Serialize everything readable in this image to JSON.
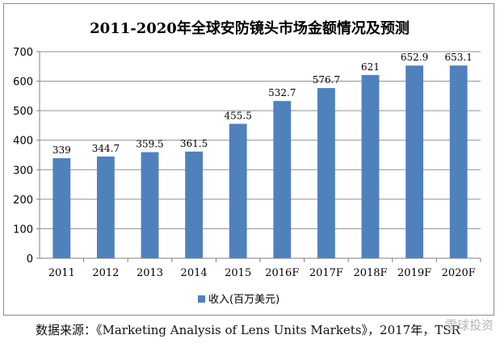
{
  "chart_data": {
    "type": "bar",
    "title": "2011-2020年全球安防镜头市场金额情况及预测",
    "categories": [
      "2011",
      "2012",
      "2013",
      "2014",
      "2015",
      "2016F",
      "2017F",
      "2018F",
      "2019F",
      "2020F"
    ],
    "series": [
      {
        "name": "收入(百万美元)",
        "values": [
          339,
          344.7,
          359.5,
          361.5,
          455.5,
          532.7,
          576.7,
          621,
          652.9,
          653.1
        ]
      }
    ],
    "data_labels": [
      "339",
      "344.7",
      "359.5",
      "361.5",
      "455.5",
      "532.7",
      "576.7",
      "621",
      "652.9",
      "653.1"
    ],
    "yticks": [
      "0",
      "100",
      "200",
      "300",
      "400",
      "500",
      "600",
      "700"
    ],
    "ylim": [
      0,
      700
    ],
    "xlabel": "",
    "ylabel": "",
    "grid": true,
    "legend": "bottom-center",
    "bar_color": "#4f81bd"
  },
  "source": "数据来源：《Marketing Analysis of Lens Units Markets》，2017年，TSR",
  "watermark": "雪球投资"
}
